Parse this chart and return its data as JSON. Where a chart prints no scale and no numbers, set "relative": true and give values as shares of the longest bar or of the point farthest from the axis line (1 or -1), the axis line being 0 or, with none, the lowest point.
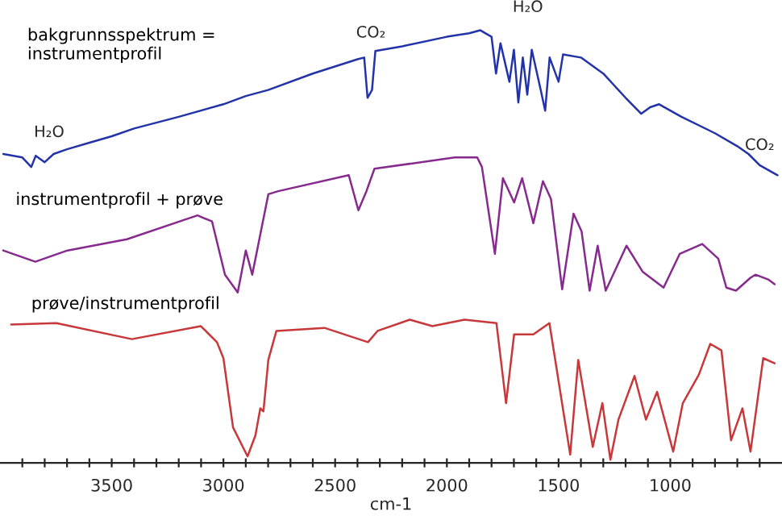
{
  "chart_data": {
    "type": "line",
    "relative": true,
    "xlabel": "cm-1",
    "xlim": [
      4000,
      500
    ],
    "xticks": [
      {
        "value": 3900,
        "label": null
      },
      {
        "value": 3800,
        "label": null
      },
      {
        "value": 3700,
        "label": null
      },
      {
        "value": 3600,
        "label": null
      },
      3500,
      {
        "value": 3400,
        "label": null
      },
      {
        "value": 3300,
        "label": null
      },
      {
        "value": 3200,
        "label": null
      },
      {
        "value": 3100,
        "label": null
      },
      3000,
      {
        "value": 2900,
        "label": null
      },
      {
        "value": 2800,
        "label": null
      },
      {
        "value": 2700,
        "label": null
      },
      {
        "value": 2600,
        "label": null
      },
      2500,
      {
        "value": 2400,
        "label": null
      },
      {
        "value": 2300,
        "label": null
      },
      {
        "value": 2200,
        "label": null
      },
      {
        "value": 2100,
        "label": null
      },
      2000,
      {
        "value": 1900,
        "label": null
      },
      {
        "value": 1800,
        "label": null
      },
      {
        "value": 1700,
        "label": null
      },
      {
        "value": 1600,
        "label": null
      },
      1500,
      {
        "value": 1400,
        "label": null
      },
      {
        "value": 1300,
        "label": null
      },
      {
        "value": 1200,
        "label": null
      },
      {
        "value": 1100,
        "label": null
      },
      1000,
      {
        "value": 900,
        "label": null
      },
      {
        "value": 800,
        "label": null
      },
      {
        "value": 700,
        "label": null
      },
      {
        "value": 600,
        "label": null
      }
    ],
    "grid": false,
    "marker": "none",
    "line_style": "solid",
    "series": [
      {
        "name": "bakgrunnsspektrum =\ninstrumentprofil",
        "color": "#2233aa",
        "x": [
          3985,
          3900,
          3860,
          3840,
          3800,
          3760,
          3700,
          3600,
          3500,
          3400,
          3200,
          3000,
          2900,
          2800,
          2600,
          2400,
          2370,
          2355,
          2335,
          2320,
          2200,
          2000,
          1900,
          1850,
          1800,
          1780,
          1760,
          1720,
          1700,
          1680,
          1660,
          1640,
          1620,
          1580,
          1560,
          1540,
          1500,
          1480,
          1400,
          1300,
          1200,
          1130,
          1090,
          1050,
          950,
          800,
          700,
          650,
          600,
          520
        ],
        "values": [
          0.714,
          0.706,
          0.684,
          0.71,
          0.695,
          0.714,
          0.725,
          0.74,
          0.755,
          0.773,
          0.8,
          0.829,
          0.848,
          0.862,
          0.9,
          0.933,
          0.937,
          0.844,
          0.862,
          0.952,
          0.963,
          0.985,
          0.993,
          1.0,
          0.985,
          0.9,
          0.97,
          0.881,
          0.955,
          0.833,
          0.937,
          0.851,
          0.955,
          0.862,
          0.814,
          0.937,
          0.881,
          0.944,
          0.937,
          0.9,
          0.844,
          0.807,
          0.822,
          0.829,
          0.8,
          0.762,
          0.732,
          0.714,
          0.688,
          0.665
        ]
      },
      {
        "name": "instrumentprofil + prøve",
        "color": "#862a8e",
        "x": [
          3986,
          3842,
          3698,
          3432,
          3116,
          3051,
          2993,
          2936,
          2900,
          2871,
          2799,
          2755,
          2439,
          2396,
          2360,
          2324,
          1965,
          1864,
          1843,
          1785,
          1749,
          1699,
          1663,
          1613,
          1570,
          1534,
          1484,
          1433,
          1397,
          1361,
          1325,
          1289,
          1196,
          1124,
          1030,
          958,
          857,
          785,
          749,
          706,
          641,
          619,
          562,
          533
        ],
        "values": [
          0.491,
          0.465,
          0.491,
          0.517,
          0.572,
          0.558,
          0.435,
          0.394,
          0.491,
          0.435,
          0.621,
          0.628,
          0.665,
          0.584,
          0.628,
          0.68,
          0.706,
          0.706,
          0.684,
          0.483,
          0.658,
          0.602,
          0.658,
          0.554,
          0.651,
          0.61,
          0.401,
          0.576,
          0.535,
          0.398,
          0.502,
          0.398,
          0.502,
          0.442,
          0.405,
          0.483,
          0.506,
          0.472,
          0.405,
          0.398,
          0.428,
          0.435,
          0.424,
          0.413
        ]
      },
      {
        "name": "prøve/instrumentprofil",
        "color": "#c8383a",
        "x": [
          3950,
          3748,
          3410,
          3101,
          3029,
          3000,
          2957,
          2892,
          2857,
          2835,
          2821,
          2799,
          2763,
          2548,
          2353,
          2310,
          2166,
          2065,
          1921,
          1778,
          1735,
          1699,
          1613,
          1541,
          1448,
          1412,
          1347,
          1304,
          1268,
          1232,
          1160,
          1109,
          1059,
          987,
          944,
          872,
          821,
          771,
          728,
          677,
          641,
          584,
          533
        ],
        "values": [
          0.32,
          0.323,
          0.286,
          0.316,
          0.279,
          0.242,
          0.082,
          0.015,
          0.063,
          0.126,
          0.119,
          0.238,
          0.305,
          0.312,
          0.279,
          0.305,
          0.331,
          0.316,
          0.331,
          0.323,
          0.138,
          0.297,
          0.297,
          0.323,
          0.019,
          0.238,
          0.037,
          0.138,
          0.007,
          0.1,
          0.201,
          0.1,
          0.164,
          0.026,
          0.138,
          0.204,
          0.275,
          0.26,
          0.052,
          0.126,
          0.026,
          0.242,
          0.23
        ]
      }
    ],
    "annotations": [
      {
        "text": "H₂O",
        "x": 3780,
        "y": 0.72
      },
      {
        "text": "CO₂",
        "x": 2340,
        "y": 0.95
      },
      "H₂O",
      {
        "text": "CO₂",
        "x": 600,
        "y": 0.69
      }
    ]
  }
}
